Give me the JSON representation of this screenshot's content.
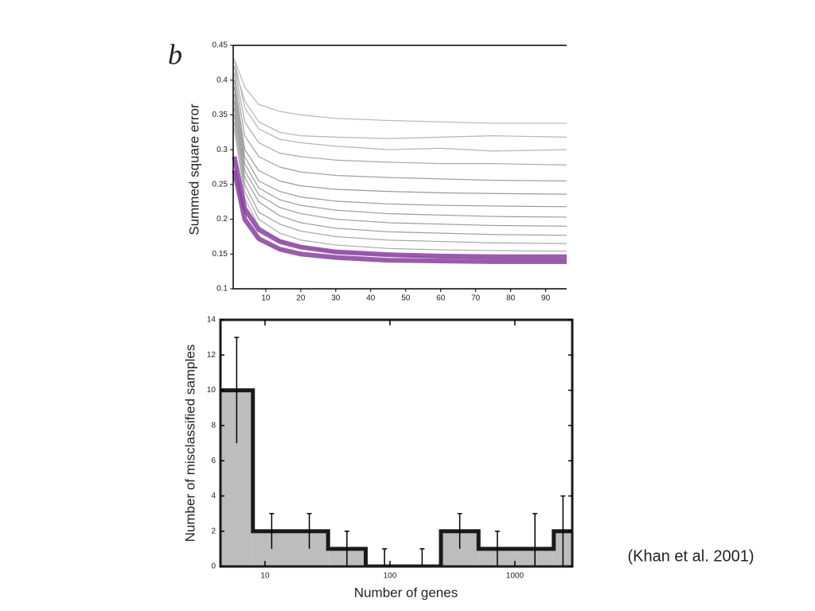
{
  "page": {
    "panel_label": "b",
    "citation": "(Khan et al. 2001)"
  },
  "chart_data": [
    {
      "type": "line",
      "ylabel": "Summed square error",
      "x": [
        1,
        4,
        8,
        14,
        20,
        30,
        45,
        60,
        75,
        96
      ],
      "xlim": [
        0.7,
        96
      ],
      "ylim": [
        0.1,
        0.45
      ],
      "xticks": [
        10,
        20,
        30,
        40,
        50,
        60,
        70,
        80,
        90
      ],
      "yticks": [
        0.1,
        0.15,
        0.2,
        0.25,
        0.3,
        0.35,
        0.4,
        0.45
      ],
      "series": [
        {
          "color": "#b5b5b5",
          "values": [
            0.43,
            0.39,
            0.365,
            0.355,
            0.35,
            0.345,
            0.342,
            0.34,
            0.338,
            0.338
          ]
        },
        {
          "color": "#b5b5b5",
          "values": [
            0.42,
            0.37,
            0.34,
            0.325,
            0.32,
            0.318,
            0.316,
            0.318,
            0.32,
            0.318
          ]
        },
        {
          "color": "#b5b5b5",
          "values": [
            0.43,
            0.36,
            0.33,
            0.315,
            0.31,
            0.305,
            0.3,
            0.302,
            0.298,
            0.3
          ]
        },
        {
          "color": "#a8a8a8",
          "values": [
            0.42,
            0.34,
            0.31,
            0.295,
            0.29,
            0.285,
            0.282,
            0.28,
            0.28,
            0.278
          ]
        },
        {
          "color": "#a0a0a0",
          "values": [
            0.41,
            0.32,
            0.29,
            0.275,
            0.268,
            0.263,
            0.26,
            0.258,
            0.256,
            0.255
          ]
        },
        {
          "color": "#999999",
          "values": [
            0.4,
            0.3,
            0.27,
            0.255,
            0.248,
            0.243,
            0.24,
            0.238,
            0.237,
            0.236
          ]
        },
        {
          "color": "#999999",
          "values": [
            0.39,
            0.29,
            0.255,
            0.24,
            0.232,
            0.226,
            0.222,
            0.22,
            0.219,
            0.218
          ]
        },
        {
          "color": "#999999",
          "values": [
            0.38,
            0.28,
            0.245,
            0.228,
            0.22,
            0.213,
            0.208,
            0.206,
            0.204,
            0.203
          ]
        },
        {
          "color": "#999999",
          "values": [
            0.37,
            0.27,
            0.235,
            0.217,
            0.208,
            0.2,
            0.195,
            0.193,
            0.191,
            0.19
          ]
        },
        {
          "color": "#999999",
          "values": [
            0.36,
            0.26,
            0.225,
            0.205,
            0.195,
            0.187,
            0.182,
            0.18,
            0.178,
            0.177
          ]
        },
        {
          "color": "#a0a0a0",
          "values": [
            0.35,
            0.25,
            0.21,
            0.193,
            0.183,
            0.175,
            0.17,
            0.168,
            0.166,
            0.165
          ]
        },
        {
          "color": "#a8a8a8",
          "values": [
            0.34,
            0.24,
            0.2,
            0.18,
            0.17,
            0.163,
            0.158,
            0.156,
            0.155,
            0.154
          ]
        },
        {
          "color": "#b5b5b5",
          "values": [
            0.33,
            0.23,
            0.19,
            0.17,
            0.16,
            0.153,
            0.148,
            0.145,
            0.143,
            0.142
          ]
        },
        {
          "color": "#8a3f9e",
          "values": [
            0.29,
            0.215,
            0.185,
            0.168,
            0.16,
            0.153,
            0.149,
            0.147,
            0.146,
            0.146
          ]
        },
        {
          "color": "#8a3f9e",
          "values": [
            0.27,
            0.2,
            0.172,
            0.157,
            0.15,
            0.145,
            0.141,
            0.14,
            0.139,
            0.139
          ]
        }
      ]
    },
    {
      "type": "histogram",
      "xlabel": "Number of genes",
      "ylabel": "Number of misclassified samples",
      "bins": [
        4,
        8,
        16,
        32,
        64,
        128,
        256,
        512,
        1024,
        2048,
        4096
      ],
      "values": [
        10,
        2,
        2,
        1,
        0,
        0,
        2,
        1,
        1,
        2
      ],
      "errors": [
        3,
        1,
        1,
        1,
        1,
        1,
        1,
        1,
        2,
        2
      ],
      "color": "#bdbdbd",
      "log_x": true,
      "xlim": [
        4.4,
        2880
      ],
      "ylim": [
        0,
        14
      ],
      "xticks": [
        10,
        100,
        1000
      ],
      "yticks": [
        0,
        2,
        4,
        6,
        8,
        10,
        12,
        14
      ]
    }
  ]
}
